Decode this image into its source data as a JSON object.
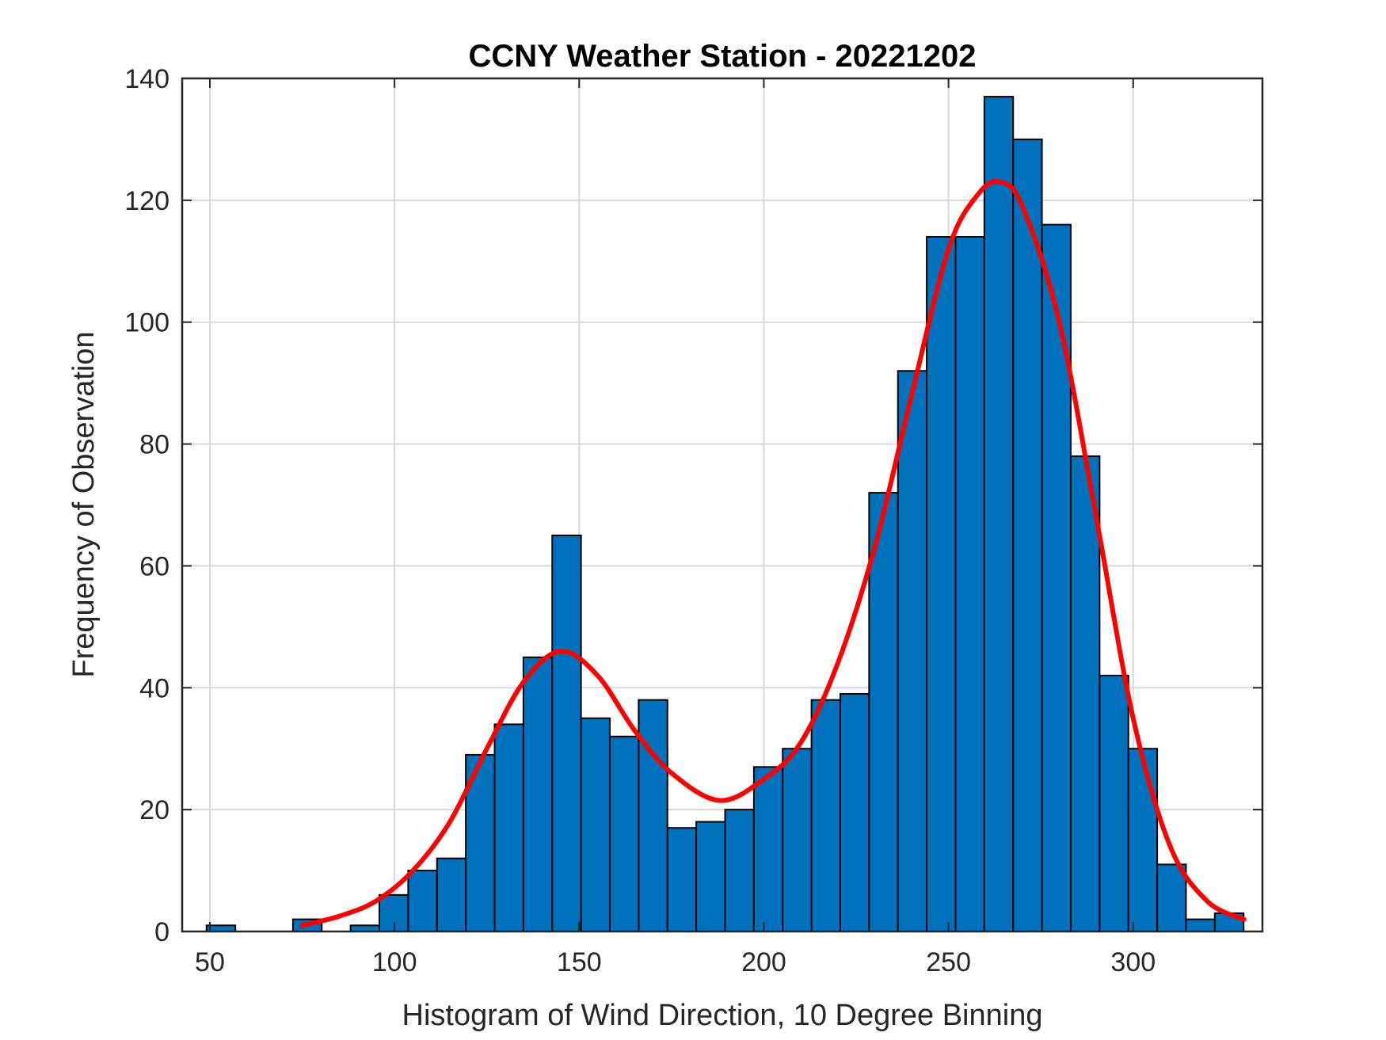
{
  "chart_data": {
    "type": "bar",
    "title": "CCNY Weather Station - 20221202",
    "xlabel": "Histogram of Wind Direction, 10 Degree Binning",
    "ylabel": "Frequency of Observation",
    "xlim": [
      42.5,
      335
    ],
    "ylim": [
      0,
      140
    ],
    "xticks": [
      50,
      100,
      150,
      200,
      250,
      300
    ],
    "yticks": [
      0,
      20,
      40,
      60,
      80,
      100,
      120,
      140
    ],
    "grid": true,
    "bin_width": 7.8,
    "bins": [
      {
        "x": 53.0,
        "value": 1
      },
      {
        "x": 60.8,
        "value": 0
      },
      {
        "x": 68.6,
        "value": 0
      },
      {
        "x": 76.4,
        "value": 2
      },
      {
        "x": 84.2,
        "value": 0
      },
      {
        "x": 92.0,
        "value": 1
      },
      {
        "x": 99.8,
        "value": 6
      },
      {
        "x": 107.6,
        "value": 10
      },
      {
        "x": 115.4,
        "value": 12
      },
      {
        "x": 123.2,
        "value": 29
      },
      {
        "x": 131.0,
        "value": 34
      },
      {
        "x": 138.8,
        "value": 45
      },
      {
        "x": 146.6,
        "value": 65
      },
      {
        "x": 154.4,
        "value": 35
      },
      {
        "x": 162.2,
        "value": 32
      },
      {
        "x": 170.0,
        "value": 38
      },
      {
        "x": 177.8,
        "value": 17
      },
      {
        "x": 185.6,
        "value": 18
      },
      {
        "x": 193.4,
        "value": 20
      },
      {
        "x": 201.2,
        "value": 27
      },
      {
        "x": 209.0,
        "value": 30
      },
      {
        "x": 216.8,
        "value": 38
      },
      {
        "x": 224.6,
        "value": 39
      },
      {
        "x": 232.4,
        "value": 72
      },
      {
        "x": 240.2,
        "value": 92
      },
      {
        "x": 248.0,
        "value": 114
      },
      {
        "x": 255.8,
        "value": 114
      },
      {
        "x": 263.6,
        "value": 137
      },
      {
        "x": 271.4,
        "value": 130
      },
      {
        "x": 279.2,
        "value": 116
      },
      {
        "x": 287.0,
        "value": 78
      },
      {
        "x": 294.8,
        "value": 42
      },
      {
        "x": 302.6,
        "value": 30
      },
      {
        "x": 310.4,
        "value": 11
      },
      {
        "x": 318.2,
        "value": 2
      },
      {
        "x": 326.0,
        "value": 3
      }
    ],
    "fit_curve": {
      "x": [
        75,
        85,
        95,
        105,
        115,
        125,
        135,
        145,
        155,
        165,
        175,
        188,
        200,
        210,
        220,
        230,
        240,
        250,
        258,
        264,
        270,
        280,
        290,
        300,
        310,
        320,
        330
      ],
      "y": [
        1,
        2.5,
        5,
        10,
        18,
        30,
        41,
        46,
        42,
        33,
        26,
        21.5,
        25,
        31,
        44,
        63,
        88,
        112,
        121,
        123,
        119,
        100,
        68,
        35,
        14,
        5,
        2
      ]
    },
    "colors": {
      "bar": "#0072BD",
      "curve": "#FF0000"
    }
  }
}
